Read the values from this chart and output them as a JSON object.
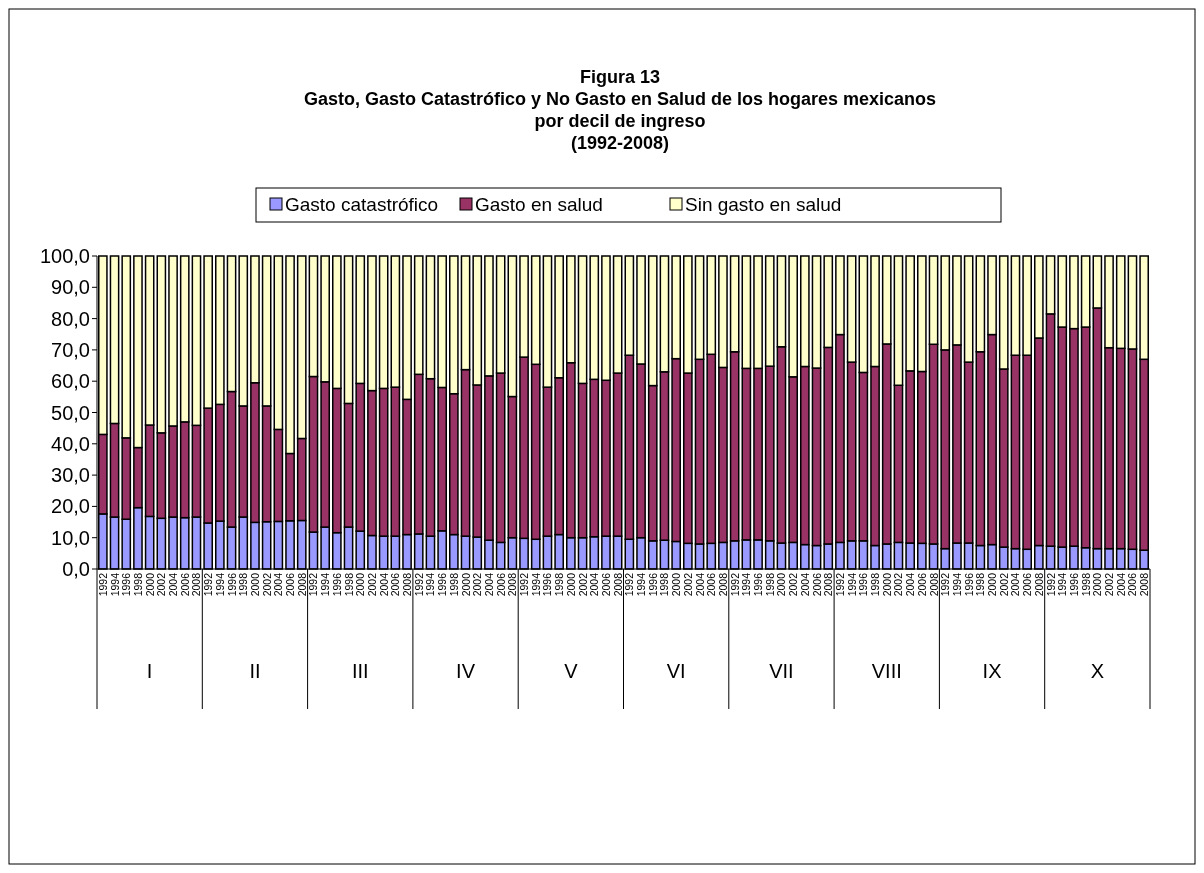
{
  "chart_data": {
    "type": "bar",
    "stacked": true,
    "title": "Figura 13\nGasto, Gasto Catastrófico y No Gasto en Salud de los hogares mexicanos\npor decil de ingreso\n(1992-2008)",
    "categories": [
      "1992",
      "1994",
      "1996",
      "1998",
      "2000",
      "2002",
      "2004",
      "2006",
      "2008",
      "1992",
      "1994",
      "1996",
      "1998",
      "2000",
      "2002",
      "2004",
      "2006",
      "2008",
      "1992",
      "1994",
      "1996",
      "1998",
      "2000",
      "2002",
      "2004",
      "2006",
      "2008",
      "1992",
      "1994",
      "1996",
      "1998",
      "2000",
      "2002",
      "2004",
      "2006",
      "2008",
      "1992",
      "1994",
      "1996",
      "1998",
      "2000",
      "2002",
      "2004",
      "2006",
      "2008",
      "1992",
      "1994",
      "1996",
      "1998",
      "2000",
      "2002",
      "2004",
      "2006",
      "2008",
      "1992",
      "1994",
      "1996",
      "1998",
      "2000",
      "2002",
      "2004",
      "2006",
      "2008",
      "1992",
      "1994",
      "1996",
      "1998",
      "2000",
      "2002",
      "2004",
      "2006",
      "2008",
      "1992",
      "1994",
      "1996",
      "1998",
      "2000",
      "2002",
      "2004",
      "2006",
      "2008",
      "1992",
      "1994",
      "1996",
      "1998",
      "2000",
      "2002",
      "2004",
      "2006",
      "2008"
    ],
    "annotations": [
      "I",
      "II",
      "III",
      "IV",
      "V",
      "VI",
      "VII",
      "VIII",
      "IX",
      "X"
    ],
    "series": [
      {
        "name": "Gasto catastrófico",
        "color": "#9999ff",
        "values": [
          17.6,
          16.6,
          15.9,
          19.6,
          16.8,
          16.2,
          16.6,
          16.4,
          16.6,
          14.7,
          15.3,
          13.4,
          16.6,
          14.9,
          15.1,
          15.2,
          15.4,
          15.5,
          11.8,
          13.4,
          11.6,
          13.4,
          12.1,
          10.7,
          10.5,
          10.5,
          11.0,
          11.2,
          10.5,
          12.2,
          11.0,
          10.5,
          10.2,
          9.2,
          8.5,
          10.0,
          9.8,
          9.5,
          10.5,
          11.0,
          10.0,
          10.0,
          10.3,
          10.5,
          10.5,
          9.5,
          10.0,
          9.0,
          9.2,
          8.8,
          8.2,
          8.0,
          8.2,
          8.5,
          9.0,
          9.3,
          9.3,
          9.0,
          8.3,
          8.5,
          7.8,
          7.5,
          8.0,
          8.5,
          9.0,
          9.0,
          7.5,
          8.0,
          8.5,
          8.3,
          8.2,
          8.0,
          6.5,
          8.3,
          8.3,
          7.5,
          7.8,
          7.0,
          6.5,
          6.3,
          7.5,
          7.3,
          7.0,
          7.3,
          6.8,
          6.5,
          6.5,
          6.5,
          6.3,
          6.0
        ]
      },
      {
        "name": "Gasto en salud",
        "color": "#993366",
        "values": [
          25.4,
          29.9,
          26.0,
          19.2,
          29.2,
          27.3,
          29.1,
          30.6,
          29.3,
          36.7,
          37.3,
          43.3,
          35.5,
          44.6,
          37.0,
          29.4,
          21.5,
          26.2,
          49.7,
          46.4,
          46.1,
          39.5,
          47.2,
          46.3,
          47.2,
          47.6,
          43.2,
          51.0,
          50.3,
          45.8,
          45.0,
          53.2,
          48.6,
          52.5,
          54.1,
          45.1,
          57.9,
          55.9,
          47.6,
          50.1,
          55.9,
          49.3,
          50.3,
          49.8,
          52.1,
          58.8,
          55.5,
          49.6,
          53.8,
          58.4,
          54.4,
          59.0,
          60.4,
          55.9,
          60.4,
          54.8,
          54.8,
          55.8,
          62.7,
          52.9,
          56.9,
          56.7,
          62.8,
          66.4,
          57.1,
          53.8,
          57.2,
          63.9,
          50.2,
          55.0,
          54.9,
          63.8,
          63.5,
          63.3,
          57.8,
          61.9,
          67.1,
          56.9,
          61.8,
          62.0,
          66.3,
          74.2,
          70.3,
          69.5,
          70.5,
          76.9,
          64.2,
          64.0,
          64.0,
          61.0
        ]
      },
      {
        "name": "Sin gasto en salud",
        "color": "#ffffcc",
        "values": [
          57.0,
          53.5,
          58.1,
          61.2,
          54.0,
          56.5,
          54.3,
          53.0,
          54.1,
          48.6,
          47.4,
          43.3,
          47.9,
          40.5,
          47.9,
          55.4,
          63.1,
          58.3,
          38.5,
          40.2,
          42.3,
          47.1,
          40.7,
          43.0,
          42.3,
          41.9,
          45.8,
          37.8,
          39.2,
          42.0,
          44.0,
          36.3,
          41.2,
          38.3,
          37.4,
          44.9,
          32.3,
          34.6,
          41.9,
          38.9,
          34.1,
          40.7,
          39.4,
          39.7,
          37.4,
          31.7,
          34.5,
          41.4,
          37.0,
          32.8,
          37.4,
          33.0,
          31.4,
          35.6,
          30.6,
          35.9,
          35.9,
          35.2,
          29.0,
          38.6,
          35.3,
          35.8,
          29.2,
          25.1,
          33.9,
          37.2,
          35.3,
          28.1,
          41.3,
          36.7,
          36.9,
          28.2,
          30.0,
          28.4,
          33.9,
          30.6,
          25.1,
          36.1,
          31.7,
          31.7,
          26.2,
          18.5,
          22.7,
          23.2,
          22.7,
          16.6,
          29.3,
          29.5,
          29.7,
          33.0
        ]
      }
    ],
    "ylim": [
      0,
      100
    ],
    "yticks": [
      {
        "value": 0,
        "label": "0,0"
      },
      {
        "value": 10,
        "label": "10,0"
      },
      {
        "value": 20,
        "label": "20,0"
      },
      {
        "value": 30,
        "label": "30,0"
      },
      {
        "value": 40,
        "label": "40,0"
      },
      {
        "value": 50,
        "label": "50,0"
      },
      {
        "value": 60,
        "label": "60,0"
      },
      {
        "value": 70,
        "label": "70,0"
      },
      {
        "value": 80,
        "label": "80,0"
      },
      {
        "value": 90,
        "label": "90,0"
      },
      {
        "value": 100,
        "label": "100,0"
      }
    ],
    "legend": "top"
  }
}
